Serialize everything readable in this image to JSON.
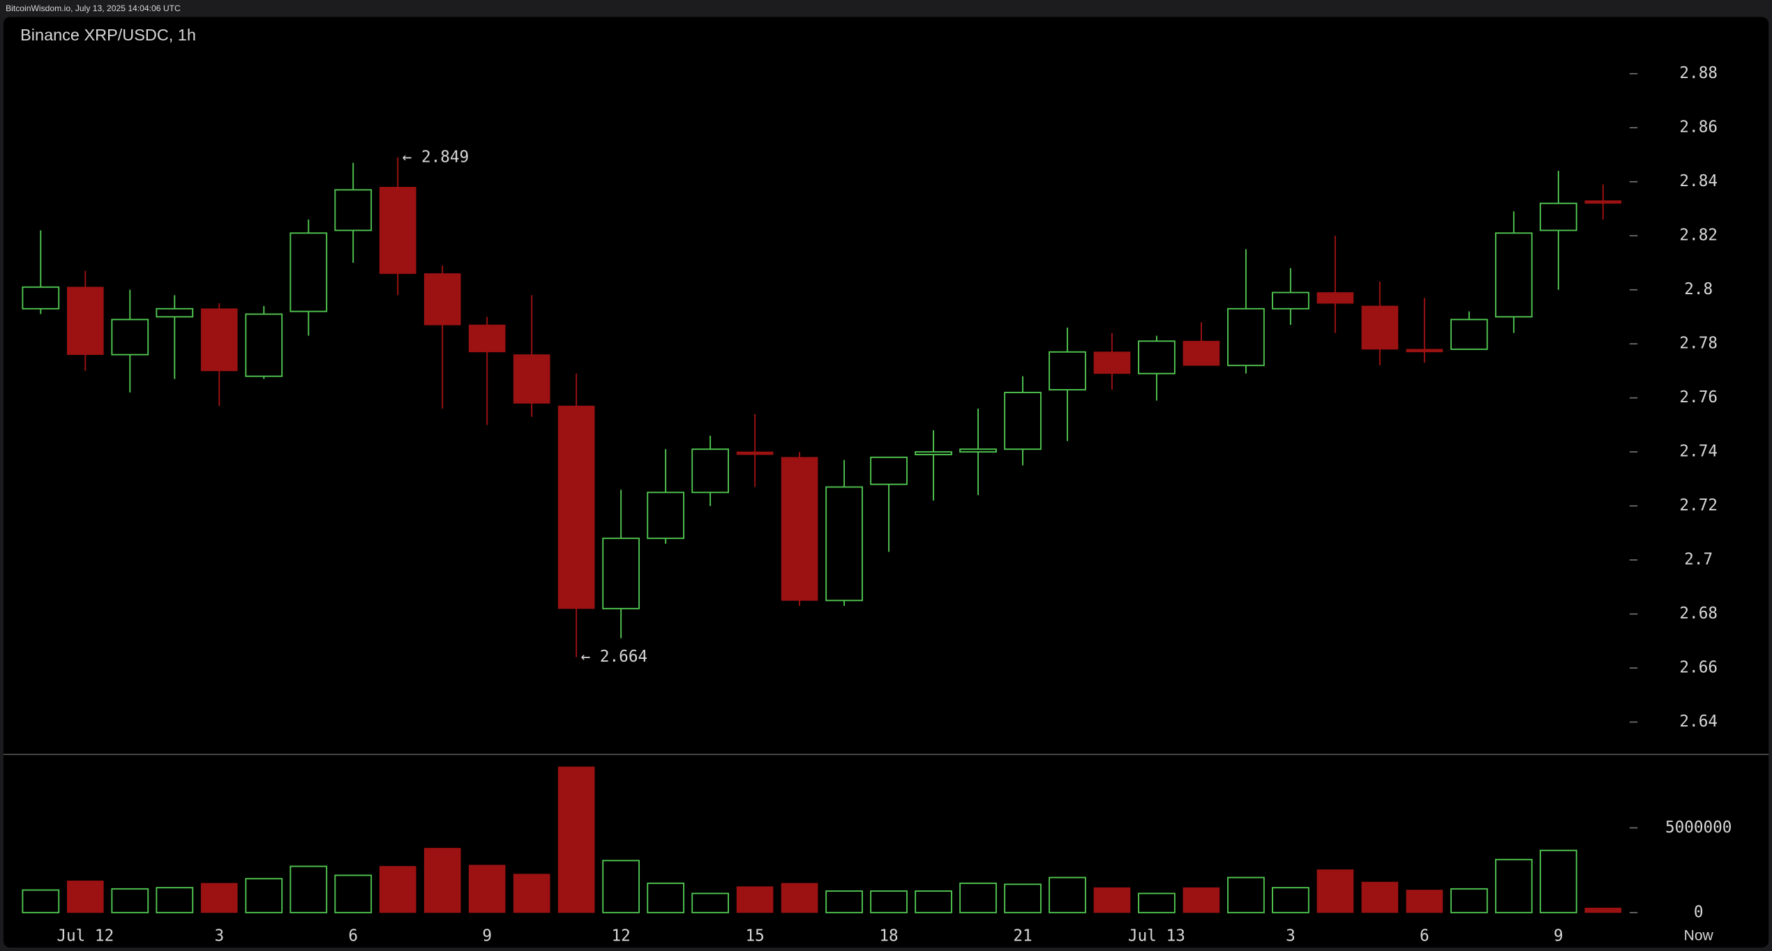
{
  "header": "BitcoinWisdom.io, July 13, 2025 14:04:06 UTC",
  "chart_data": {
    "type": "candlestick",
    "title": "Binance XRP/USDC, 1h",
    "categories": [
      null,
      "Jul 12",
      null,
      null,
      "3",
      null,
      null,
      "6",
      null,
      null,
      "9",
      null,
      null,
      "12",
      null,
      null,
      "15",
      null,
      null,
      "18",
      null,
      null,
      "21",
      null,
      null,
      "Jul 13",
      null,
      null,
      "3",
      null,
      null,
      "6",
      null,
      null,
      "9",
      null
    ],
    "now_label": "Now",
    "open": [
      2.793,
      2.801,
      2.776,
      2.79,
      2.793,
      2.768,
      2.792,
      2.822,
      2.838,
      2.806,
      2.787,
      2.776,
      2.757,
      2.682,
      2.708,
      2.725,
      2.74,
      2.738,
      2.685,
      2.728,
      2.739,
      2.74,
      2.741,
      2.763,
      2.777,
      2.769,
      2.781,
      2.772,
      2.793,
      2.799,
      2.794,
      2.778,
      2.778,
      2.79,
      2.822,
      2.833
    ],
    "high": [
      2.822,
      2.807,
      2.8,
      2.798,
      2.795,
      2.794,
      2.826,
      2.847,
      2.849,
      2.809,
      2.79,
      2.798,
      2.769,
      2.726,
      2.741,
      2.746,
      2.754,
      2.74,
      2.737,
      2.738,
      2.748,
      2.756,
      2.768,
      2.786,
      2.784,
      2.783,
      2.788,
      2.815,
      2.808,
      2.82,
      2.803,
      2.797,
      2.792,
      2.829,
      2.844,
      2.839
    ],
    "low": [
      2.791,
      2.77,
      2.762,
      2.767,
      2.757,
      2.767,
      2.783,
      2.81,
      2.798,
      2.756,
      2.75,
      2.753,
      2.664,
      2.671,
      2.706,
      2.72,
      2.727,
      2.683,
      2.683,
      2.703,
      2.722,
      2.724,
      2.735,
      2.744,
      2.763,
      2.759,
      2.772,
      2.769,
      2.787,
      2.784,
      2.772,
      2.773,
      2.778,
      2.784,
      2.8,
      2.826
    ],
    "close": [
      2.801,
      2.776,
      2.789,
      2.793,
      2.77,
      2.791,
      2.821,
      2.837,
      2.806,
      2.787,
      2.777,
      2.758,
      2.682,
      2.708,
      2.725,
      2.741,
      2.739,
      2.685,
      2.727,
      2.738,
      2.74,
      2.741,
      2.762,
      2.777,
      2.769,
      2.781,
      2.772,
      2.793,
      2.799,
      2.795,
      2.778,
      2.777,
      2.789,
      2.821,
      2.832,
      2.832
    ],
    "volume": [
      1330000,
      1870000,
      1400000,
      1470000,
      1730000,
      2000000,
      2730000,
      2200000,
      2730000,
      3800000,
      2800000,
      2270000,
      8600000,
      3070000,
      1730000,
      1130000,
      1530000,
      1730000,
      1270000,
      1270000,
      1270000,
      1730000,
      1670000,
      2070000,
      1470000,
      1130000,
      1470000,
      2070000,
      1470000,
      2530000,
      1800000,
      1330000,
      1400000,
      3130000,
      3670000,
      270000
    ],
    "up_color": "#4fc24f",
    "down_color": "#9c1212",
    "ylim": [
      2.628,
      2.901
    ],
    "yticks": [
      2.64,
      2.66,
      2.68,
      2.7,
      2.72,
      2.74,
      2.76,
      2.78,
      2.8,
      2.82,
      2.84,
      2.86,
      2.88
    ],
    "volume_ylim": [
      0,
      9333333
    ],
    "volume_ticks": [
      0,
      5000000
    ],
    "grid": false,
    "annotations": [
      {
        "label": "← 2.849",
        "value": 2.849,
        "field": "high"
      },
      {
        "label": "← 2.664",
        "value": 2.664,
        "field": "low"
      }
    ]
  }
}
